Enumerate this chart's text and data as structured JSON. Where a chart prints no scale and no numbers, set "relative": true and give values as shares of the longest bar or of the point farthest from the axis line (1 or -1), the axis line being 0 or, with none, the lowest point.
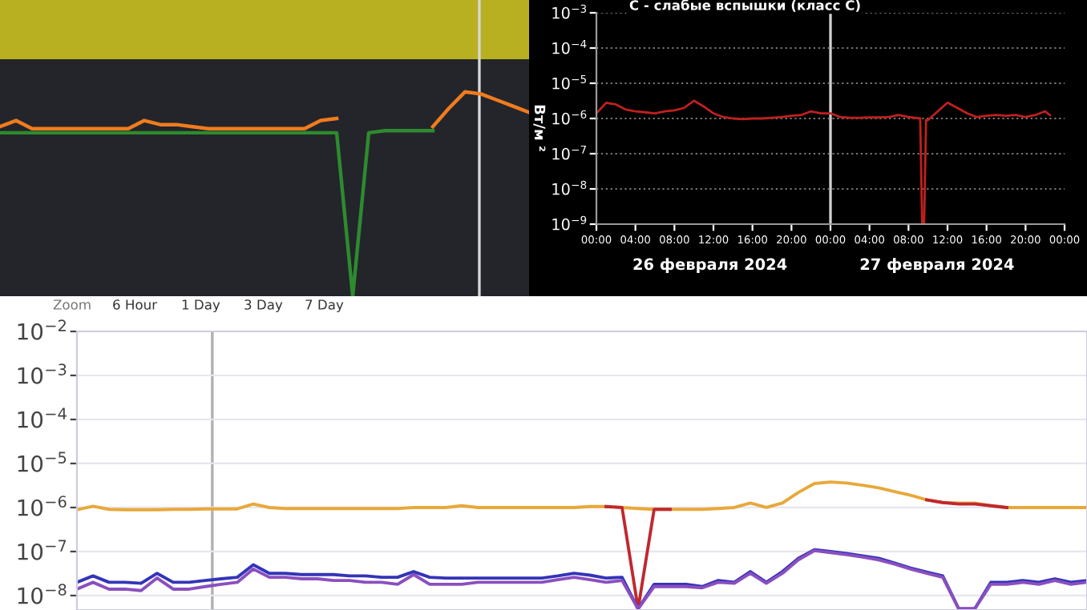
{
  "chart_data": [
    {
      "type": "line",
      "relative": true,
      "tick_labels": false,
      "categories": [
        null,
        null,
        null,
        null,
        null,
        null,
        null,
        null,
        null,
        null,
        null,
        null,
        null,
        null,
        null,
        null,
        null,
        null,
        null,
        null,
        null,
        null,
        null,
        null,
        null,
        null,
        null,
        null,
        null,
        null,
        null,
        null,
        null,
        null
      ],
      "series": [
        {
          "color": "#f07c1e",
          "values": [
            0.83,
            0.86,
            0.82,
            0.82,
            0.82,
            0.82,
            0.82,
            0.82,
            0.82,
            0.86,
            0.84,
            0.84,
            0.83,
            0.82,
            0.82,
            0.82,
            0.82,
            0.82,
            0.82,
            0.82,
            0.86,
            0.87,
            null,
            null,
            null,
            null,
            null,
            0.83,
            0.92,
            1.0,
            0.99,
            0.96,
            0.93,
            0.9
          ]
        },
        {
          "color": "#2e8b2e",
          "values": [
            0.8,
            0.8,
            0.8,
            0.8,
            0.8,
            0.8,
            0.8,
            0.8,
            0.8,
            0.8,
            0.8,
            0.8,
            0.8,
            0.8,
            0.8,
            0.8,
            0.8,
            0.8,
            0.8,
            0.8,
            0.8,
            0.8,
            0.0,
            0.8,
            0.81,
            0.81,
            0.81,
            0.81,
            null,
            null,
            null,
            null,
            null,
            null
          ]
        }
      ],
      "bands": [
        {
          "axis": "y",
          "from": 1.16,
          "to": 1.45,
          "color": "#b8b020"
        }
      ]
    },
    {
      "type": "line",
      "log": true,
      "title": "C - слабые вспышки (класс C)",
      "ylabel": "Вт/м ²",
      "annotations": [
        "26 февраля 2024",
        "27 февраля 2024"
      ],
      "x": [
        "2024-02-26T00:00",
        "2024-02-26T01:00",
        "2024-02-26T02:00",
        "2024-02-26T03:00",
        "2024-02-26T04:00",
        "2024-02-26T05:00",
        "2024-02-26T06:00",
        "2024-02-26T07:00",
        "2024-02-26T08:00",
        "2024-02-26T09:00",
        "2024-02-26T10:00",
        "2024-02-26T11:00",
        "2024-02-26T12:00",
        "2024-02-26T13:00",
        "2024-02-26T14:00",
        "2024-02-26T15:00",
        "2024-02-26T16:00",
        "2024-02-26T17:00",
        "2024-02-26T18:00",
        "2024-02-26T19:00",
        "2024-02-26T20:00",
        "2024-02-26T21:00",
        "2024-02-26T22:00",
        "2024-02-26T23:00",
        "2024-02-27T00:00",
        "2024-02-27T01:00",
        "2024-02-27T02:00",
        "2024-02-27T03:00",
        "2024-02-27T04:00",
        "2024-02-27T05:00",
        "2024-02-27T06:00",
        "2024-02-27T07:00",
        "2024-02-27T08:00",
        "2024-02-27T09:12",
        "2024-02-27T09:24",
        "2024-02-27T09:36",
        "2024-02-27T09:48",
        "2024-02-27T10:00",
        "2024-02-27T11:00",
        "2024-02-27T12:00",
        "2024-02-27T13:00",
        "2024-02-27T14:00",
        "2024-02-27T15:00",
        "2024-02-27T16:00",
        "2024-02-27T17:00",
        "2024-02-27T18:00",
        "2024-02-27T19:00",
        "2024-02-27T20:00",
        "2024-02-27T21:00",
        "2024-02-27T22:00",
        "2024-02-27T22:30"
      ],
      "series": [
        {
          "color": "#c02020",
          "values": [
            1.4e-06,
            2.8e-06,
            2.5e-06,
            1.8e-06,
            1.6e-06,
            1.5e-06,
            1.4e-06,
            1.6e-06,
            1.7e-06,
            2e-06,
            3.2e-06,
            2.2e-06,
            1.4e-06,
            1.1e-06,
            1e-06,
            9.5e-07,
            1e-06,
            1e-06,
            1.05e-06,
            1.1e-06,
            1.2e-06,
            1.25e-06,
            1.6e-06,
            1.4e-06,
            1.4e-06,
            1.1e-06,
            1.05e-06,
            1.05e-06,
            1.07e-06,
            1.07e-06,
            1.1e-06,
            1.25e-06,
            1.1e-06,
            1e-06,
            1e-09,
            1e-09,
            9e-07,
            9e-07,
            1.6e-06,
            2.8e-06,
            2e-06,
            1.4e-06,
            1.1e-06,
            1.2e-06,
            1.25e-06,
            1.2e-06,
            1.25e-06,
            1.1e-06,
            1.25e-06,
            1.6e-06,
            1.25e-06
          ]
        }
      ],
      "xlim": [
        "2024-02-26T00:00",
        "2024-02-28T00:00"
      ],
      "ylim": [
        1e-09,
        0.001
      ],
      "xticks": [
        {
          "value": "2024-02-26T00:00",
          "label": "00:00"
        },
        {
          "value": "2024-02-26T04:00",
          "label": "04:00"
        },
        {
          "value": "2024-02-26T08:00",
          "label": "08:00"
        },
        {
          "value": "2024-02-26T12:00",
          "label": "12:00"
        },
        {
          "value": "2024-02-26T16:00",
          "label": "16:00"
        },
        {
          "value": "2024-02-26T20:00",
          "label": "20:00"
        },
        {
          "value": "2024-02-27T00:00",
          "label": "00:00"
        },
        {
          "value": "2024-02-27T04:00",
          "label": "04:00"
        },
        {
          "value": "2024-02-27T08:00",
          "label": "08:00"
        },
        {
          "value": "2024-02-27T12:00",
          "label": "12:00"
        },
        {
          "value": "2024-02-27T16:00",
          "label": "16:00"
        },
        {
          "value": "2024-02-27T20:00",
          "label": "20:00"
        },
        {
          "value": "2024-02-28T00:00",
          "label": "00:00"
        }
      ],
      "yticks": [
        {
          "value": 0.001,
          "label": "10$^{−3}$"
        },
        {
          "value": 0.0001,
          "label": "10$^{−4}$"
        },
        {
          "value": 1e-05,
          "label": "10$^{−5}$"
        },
        {
          "value": 1e-06,
          "label": "10$^{−6}$"
        },
        {
          "value": 1e-07,
          "label": "10$^{−7}$"
        },
        {
          "value": 1e-08,
          "label": "10$^{−8}$"
        },
        {
          "value": 1e-09,
          "label": "10$^{−9}$"
        }
      ],
      "grid": "y",
      "ref_lines": [
        {
          "axis": "x",
          "value": "2024-02-27T00:00",
          "color": "#d0d0d0"
        }
      ]
    },
    {
      "type": "line",
      "log": true,
      "tick_labels": "y",
      "annotations": [
        "Zoom",
        "6 Hour",
        "1 Day",
        "3 Day",
        "7 Day"
      ],
      "categories": [
        null,
        null,
        null,
        null,
        null,
        null,
        null,
        null,
        null,
        null,
        null,
        null,
        null,
        null,
        null,
        null,
        null,
        null,
        null,
        null,
        null,
        null,
        null,
        null,
        null,
        null,
        null,
        null,
        null,
        null,
        null,
        null,
        null,
        null,
        null,
        null,
        null,
        null,
        null,
        null,
        null,
        null,
        null,
        null,
        null,
        null,
        null,
        null,
        null,
        null,
        null,
        null,
        null,
        null,
        null,
        null,
        null,
        null,
        null,
        null,
        null,
        null,
        null,
        null
      ],
      "series": [
        {
          "color": "#e8a83a",
          "values": [
            8.9e-07,
            1.07e-06,
            9.1e-07,
            8.9e-07,
            8.9e-07,
            8.9e-07,
            9.1e-07,
            9.1e-07,
            9.3e-07,
            9.3e-07,
            9.3e-07,
            1.2e-06,
            1e-06,
            9.5e-07,
            9.5e-07,
            9.5e-07,
            9.5e-07,
            9.5e-07,
            9.5e-07,
            9.5e-07,
            9.5e-07,
            1e-06,
            1e-06,
            1e-06,
            1.1e-06,
            1e-06,
            1e-06,
            1e-06,
            1e-06,
            1e-06,
            1e-06,
            1e-06,
            1.05e-06,
            1.05e-06,
            1e-06,
            9.5e-07,
            9.1e-07,
            9.1e-07,
            9.1e-07,
            9.1e-07,
            9.5e-07,
            1e-06,
            1.26e-06,
            1e-06,
            1.26e-06,
            2.2e-06,
            3.5e-06,
            3.8e-06,
            3.6e-06,
            3.2e-06,
            2.8e-06,
            2.3e-06,
            1.9e-06,
            1.5e-06,
            1.3e-06,
            1.26e-06,
            1.26e-06,
            1.1e-06,
            1e-06,
            1e-06,
            1e-06,
            1e-06,
            1e-06,
            1e-06
          ]
        },
        {
          "color": "#c0282f",
          "values": [
            null,
            null,
            null,
            null,
            null,
            null,
            null,
            null,
            null,
            null,
            null,
            null,
            null,
            null,
            null,
            null,
            null,
            null,
            null,
            null,
            null,
            null,
            null,
            null,
            null,
            null,
            null,
            null,
            null,
            null,
            null,
            null,
            null,
            1.05e-06,
            1e-06,
            5e-09,
            9.1e-07,
            9.1e-07,
            null,
            null,
            null,
            null,
            null,
            null,
            null,
            null,
            null,
            null,
            null,
            null,
            null,
            null,
            null,
            1.5e-06,
            1.3e-06,
            1.2e-06,
            1.2e-06,
            1.1e-06,
            1e-06,
            null,
            null,
            null,
            null,
            null
          ]
        },
        {
          "color": "#3434b8",
          "values": [
            2e-08,
            2.8e-08,
            2e-08,
            2e-08,
            1.9e-08,
            3.2e-08,
            2e-08,
            2e-08,
            2.2e-08,
            2.4e-08,
            2.6e-08,
            5e-08,
            3.2e-08,
            3.2e-08,
            3e-08,
            3e-08,
            3e-08,
            2.8e-08,
            2.8e-08,
            2.6e-08,
            2.6e-08,
            3.5e-08,
            2.6e-08,
            2.5e-08,
            2.5e-08,
            2.5e-08,
            2.5e-08,
            2.5e-08,
            2.5e-08,
            2.5e-08,
            2.8e-08,
            3.2e-08,
            2.9e-08,
            2.5e-08,
            2.6e-08,
            5e-09,
            1.8e-08,
            1.8e-08,
            1.8e-08,
            1.6e-08,
            2.2e-08,
            2e-08,
            3.5e-08,
            2e-08,
            3.5e-08,
            7e-08,
            1.1e-07,
            1e-07,
            9e-08,
            8e-08,
            7e-08,
            5.5e-08,
            4.2e-08,
            3.4e-08,
            2.8e-08,
            5e-09,
            5e-09,
            2e-08,
            2e-08,
            2.2e-08,
            2e-08,
            2.4e-08,
            2e-08,
            2.2e-08
          ]
        },
        {
          "color": "#8a4fc0",
          "values": [
            1.4e-08,
            2e-08,
            1.4e-08,
            1.4e-08,
            1.3e-08,
            2.5e-08,
            1.4e-08,
            1.4e-08,
            1.6e-08,
            1.8e-08,
            2e-08,
            4e-08,
            2.6e-08,
            2.6e-08,
            2.4e-08,
            2.4e-08,
            2.2e-08,
            2.2e-08,
            2e-08,
            2e-08,
            1.8e-08,
            3e-08,
            1.8e-08,
            1.8e-08,
            1.8e-08,
            2e-08,
            2e-08,
            2e-08,
            2e-08,
            2e-08,
            2.3e-08,
            2.6e-08,
            2.3e-08,
            2e-08,
            2.2e-08,
            5e-09,
            1.6e-08,
            1.6e-08,
            1.6e-08,
            1.5e-08,
            2e-08,
            1.9e-08,
            3.2e-08,
            1.9e-08,
            3.2e-08,
            6.5e-08,
            1.05e-07,
            9.5e-08,
            8.5e-08,
            7.5e-08,
            6.5e-08,
            5.2e-08,
            4e-08,
            3.2e-08,
            2.6e-08,
            5e-09,
            5e-09,
            1.8e-08,
            1.8e-08,
            2e-08,
            1.8e-08,
            2.2e-08,
            1.8e-08,
            2e-08
          ]
        }
      ],
      "ylim": [
        4.7e-09,
        0.01
      ],
      "yticks": [
        {
          "value": 0.01,
          "label": "10$^{−2}$"
        },
        {
          "value": 0.001,
          "label": "10$^{−3}$"
        },
        {
          "value": 0.0001,
          "label": "10$^{−4}$"
        },
        {
          "value": 1e-05,
          "label": "10$^{−5}$"
        },
        {
          "value": 1e-06,
          "label": "10$^{−6}$"
        },
        {
          "value": 1e-07,
          "label": "10$^{−7}$"
        },
        {
          "value": 1e-08,
          "label": "10$^{−8}$"
        }
      ],
      "grid": "y"
    }
  ]
}
